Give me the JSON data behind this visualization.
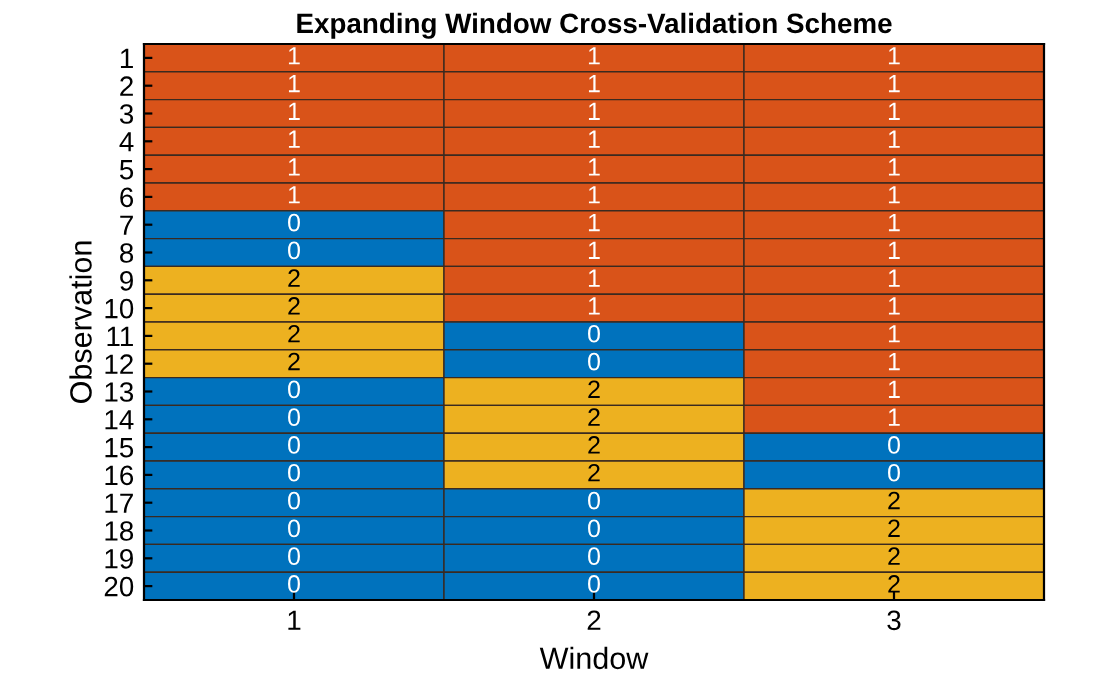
{
  "chart_data": {
    "type": "heatmap",
    "title": "Expanding Window Cross-Validation Scheme",
    "xlabel": "Window",
    "ylabel": "Observation",
    "categories": [
      "1",
      "2",
      "3"
    ],
    "y_categories": [
      "1",
      "2",
      "3",
      "4",
      "5",
      "6",
      "7",
      "8",
      "9",
      "10",
      "11",
      "12",
      "13",
      "14",
      "15",
      "16",
      "17",
      "18",
      "19",
      "20"
    ],
    "cells": [
      [
        1,
        1,
        1
      ],
      [
        1,
        1,
        1
      ],
      [
        1,
        1,
        1
      ],
      [
        1,
        1,
        1
      ],
      [
        1,
        1,
        1
      ],
      [
        1,
        1,
        1
      ],
      [
        0,
        1,
        1
      ],
      [
        0,
        1,
        1
      ],
      [
        2,
        1,
        1
      ],
      [
        2,
        1,
        1
      ],
      [
        2,
        0,
        1
      ],
      [
        2,
        0,
        1
      ],
      [
        0,
        2,
        1
      ],
      [
        0,
        2,
        1
      ],
      [
        0,
        2,
        0
      ],
      [
        0,
        2,
        0
      ],
      [
        0,
        0,
        2
      ],
      [
        0,
        0,
        2
      ],
      [
        0,
        0,
        2
      ],
      [
        0,
        0,
        2
      ]
    ],
    "colors": [
      "#0072bd",
      "#d95319",
      "#edb120"
    ],
    "data_labels": true
  }
}
